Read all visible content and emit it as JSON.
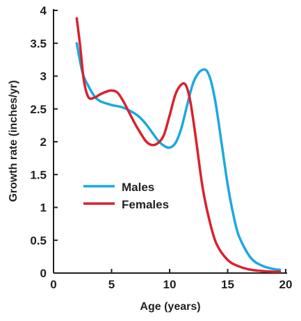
{
  "chart_data": {
    "type": "line",
    "xlabel": "Age (years)",
    "ylabel": "Growth rate (inches/yr)",
    "xlim": [
      0,
      20
    ],
    "ylim": [
      0,
      4
    ],
    "xticks": [
      0,
      5,
      10,
      15,
      20
    ],
    "yticks": [
      0,
      0.5,
      1,
      1.5,
      2,
      2.5,
      3,
      3.5,
      4
    ],
    "grid": false,
    "legend_position": "middle-left",
    "series": [
      {
        "name": "Males",
        "color": "#1ba8e0",
        "x": [
          2,
          2.5,
          3,
          3.5,
          4,
          5,
          6,
          7,
          7.5,
          8,
          8.5,
          9,
          9.5,
          10,
          10.5,
          11,
          11.5,
          12,
          12.5,
          13,
          13.3,
          13.6,
          14,
          14.5,
          15,
          15.5,
          16,
          17,
          18,
          19,
          19.5
        ],
        "values": [
          3.5,
          3.05,
          2.85,
          2.7,
          2.62,
          2.56,
          2.52,
          2.43,
          2.36,
          2.26,
          2.14,
          2.02,
          1.94,
          1.91,
          1.98,
          2.2,
          2.55,
          2.88,
          3.05,
          3.1,
          3.05,
          2.9,
          2.55,
          1.95,
          1.35,
          0.88,
          0.55,
          0.23,
          0.11,
          0.06,
          0.05
        ]
      },
      {
        "name": "Females",
        "color": "#d9212d",
        "x": [
          2,
          2.3,
          2.6,
          3,
          3.5,
          4,
          4.5,
          5,
          5.5,
          6,
          6.5,
          7,
          7.5,
          8,
          8.5,
          9,
          9.5,
          10,
          10.5,
          11,
          11.4,
          11.8,
          12.3,
          12.8,
          13.3,
          14,
          15,
          16,
          17,
          18,
          19,
          19.5
        ],
        "values": [
          3.88,
          3.45,
          2.95,
          2.68,
          2.67,
          2.72,
          2.76,
          2.78,
          2.75,
          2.62,
          2.45,
          2.28,
          2.13,
          2.0,
          1.95,
          1.98,
          2.1,
          2.4,
          2.72,
          2.87,
          2.86,
          2.6,
          2.0,
          1.35,
          0.9,
          0.46,
          0.2,
          0.1,
          0.05,
          0.03,
          0.02,
          0.02
        ]
      }
    ]
  }
}
